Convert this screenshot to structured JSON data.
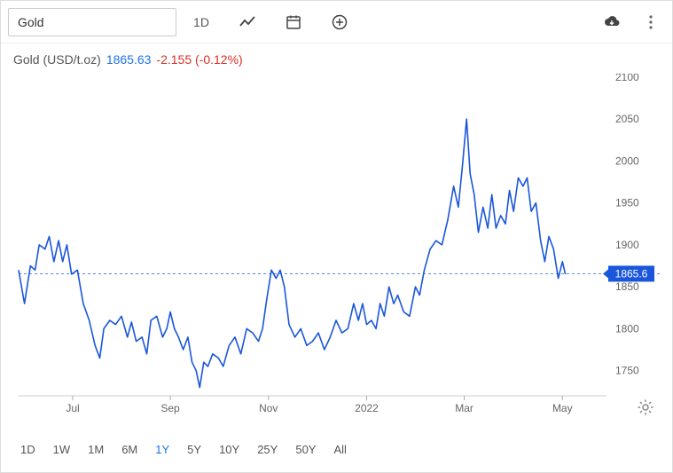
{
  "toolbar": {
    "search_value": "Gold",
    "timeframe_label": "1D"
  },
  "header": {
    "name": "Gold (USD/t.oz)",
    "price": "1865.63",
    "change": "-2.155 (-0.12%)"
  },
  "chart": {
    "type": "line",
    "line_color": "#1a56db",
    "line_width": 1.6,
    "background_color": "#ffffff",
    "border_color": "#e0e0e0",
    "label_fontsize": 12,
    "label_color": "#666666",
    "ylim": [
      1720,
      2100
    ],
    "yticks": [
      1750,
      1800,
      1850,
      1900,
      1950,
      2000,
      2050,
      2100
    ],
    "xticks": [
      "Jul",
      "Sep",
      "Nov",
      "2022",
      "Mar",
      "May"
    ],
    "xtick_positions": [
      0.092,
      0.258,
      0.425,
      0.592,
      0.758,
      0.925
    ],
    "current_badge": {
      "value": "1865.6",
      "bg": "#1a56db",
      "fg": "#ffffff"
    },
    "reference_line": {
      "y": 1865.6,
      "color": "#1a56db",
      "dash": "3,3"
    },
    "series": [
      {
        "x": 0.0,
        "y": 1870
      },
      {
        "x": 0.01,
        "y": 1830
      },
      {
        "x": 0.02,
        "y": 1875
      },
      {
        "x": 0.028,
        "y": 1870
      },
      {
        "x": 0.035,
        "y": 1900
      },
      {
        "x": 0.045,
        "y": 1895
      },
      {
        "x": 0.052,
        "y": 1910
      },
      {
        "x": 0.06,
        "y": 1880
      },
      {
        "x": 0.068,
        "y": 1905
      },
      {
        "x": 0.075,
        "y": 1880
      },
      {
        "x": 0.082,
        "y": 1900
      },
      {
        "x": 0.09,
        "y": 1865
      },
      {
        "x": 0.1,
        "y": 1870
      },
      {
        "x": 0.11,
        "y": 1830
      },
      {
        "x": 0.12,
        "y": 1810
      },
      {
        "x": 0.13,
        "y": 1780
      },
      {
        "x": 0.138,
        "y": 1765
      },
      {
        "x": 0.145,
        "y": 1800
      },
      {
        "x": 0.155,
        "y": 1810
      },
      {
        "x": 0.165,
        "y": 1805
      },
      {
        "x": 0.175,
        "y": 1815
      },
      {
        "x": 0.185,
        "y": 1790
      },
      {
        "x": 0.192,
        "y": 1808
      },
      {
        "x": 0.2,
        "y": 1785
      },
      {
        "x": 0.21,
        "y": 1790
      },
      {
        "x": 0.218,
        "y": 1770
      },
      {
        "x": 0.225,
        "y": 1810
      },
      {
        "x": 0.235,
        "y": 1815
      },
      {
        "x": 0.245,
        "y": 1790
      },
      {
        "x": 0.252,
        "y": 1800
      },
      {
        "x": 0.258,
        "y": 1820
      },
      {
        "x": 0.265,
        "y": 1800
      },
      {
        "x": 0.272,
        "y": 1790
      },
      {
        "x": 0.28,
        "y": 1775
      },
      {
        "x": 0.288,
        "y": 1790
      },
      {
        "x": 0.295,
        "y": 1760
      },
      {
        "x": 0.302,
        "y": 1750
      },
      {
        "x": 0.308,
        "y": 1730
      },
      {
        "x": 0.315,
        "y": 1760
      },
      {
        "x": 0.322,
        "y": 1755
      },
      {
        "x": 0.33,
        "y": 1770
      },
      {
        "x": 0.34,
        "y": 1765
      },
      {
        "x": 0.348,
        "y": 1755
      },
      {
        "x": 0.358,
        "y": 1780
      },
      {
        "x": 0.368,
        "y": 1790
      },
      {
        "x": 0.378,
        "y": 1770
      },
      {
        "x": 0.388,
        "y": 1800
      },
      {
        "x": 0.398,
        "y": 1795
      },
      {
        "x": 0.408,
        "y": 1785
      },
      {
        "x": 0.415,
        "y": 1800
      },
      {
        "x": 0.422,
        "y": 1835
      },
      {
        "x": 0.43,
        "y": 1870
      },
      {
        "x": 0.438,
        "y": 1860
      },
      {
        "x": 0.445,
        "y": 1870
      },
      {
        "x": 0.452,
        "y": 1850
      },
      {
        "x": 0.46,
        "y": 1805
      },
      {
        "x": 0.47,
        "y": 1790
      },
      {
        "x": 0.48,
        "y": 1800
      },
      {
        "x": 0.49,
        "y": 1780
      },
      {
        "x": 0.5,
        "y": 1785
      },
      {
        "x": 0.51,
        "y": 1795
      },
      {
        "x": 0.52,
        "y": 1775
      },
      {
        "x": 0.53,
        "y": 1790
      },
      {
        "x": 0.54,
        "y": 1810
      },
      {
        "x": 0.55,
        "y": 1795
      },
      {
        "x": 0.56,
        "y": 1800
      },
      {
        "x": 0.57,
        "y": 1830
      },
      {
        "x": 0.578,
        "y": 1810
      },
      {
        "x": 0.585,
        "y": 1830
      },
      {
        "x": 0.592,
        "y": 1805
      },
      {
        "x": 0.6,
        "y": 1810
      },
      {
        "x": 0.608,
        "y": 1800
      },
      {
        "x": 0.615,
        "y": 1830
      },
      {
        "x": 0.622,
        "y": 1815
      },
      {
        "x": 0.63,
        "y": 1850
      },
      {
        "x": 0.638,
        "y": 1830
      },
      {
        "x": 0.645,
        "y": 1840
      },
      {
        "x": 0.655,
        "y": 1820
      },
      {
        "x": 0.665,
        "y": 1815
      },
      {
        "x": 0.675,
        "y": 1850
      },
      {
        "x": 0.682,
        "y": 1840
      },
      {
        "x": 0.69,
        "y": 1870
      },
      {
        "x": 0.7,
        "y": 1895
      },
      {
        "x": 0.71,
        "y": 1905
      },
      {
        "x": 0.72,
        "y": 1900
      },
      {
        "x": 0.73,
        "y": 1930
      },
      {
        "x": 0.74,
        "y": 1970
      },
      {
        "x": 0.748,
        "y": 1945
      },
      {
        "x": 0.755,
        "y": 1995
      },
      {
        "x": 0.762,
        "y": 2050
      },
      {
        "x": 0.768,
        "y": 1985
      },
      {
        "x": 0.775,
        "y": 1960
      },
      {
        "x": 0.782,
        "y": 1915
      },
      {
        "x": 0.79,
        "y": 1945
      },
      {
        "x": 0.798,
        "y": 1920
      },
      {
        "x": 0.805,
        "y": 1960
      },
      {
        "x": 0.812,
        "y": 1920
      },
      {
        "x": 0.82,
        "y": 1935
      },
      {
        "x": 0.828,
        "y": 1925
      },
      {
        "x": 0.835,
        "y": 1965
      },
      {
        "x": 0.842,
        "y": 1940
      },
      {
        "x": 0.85,
        "y": 1980
      },
      {
        "x": 0.858,
        "y": 1970
      },
      {
        "x": 0.865,
        "y": 1980
      },
      {
        "x": 0.872,
        "y": 1940
      },
      {
        "x": 0.88,
        "y": 1950
      },
      {
        "x": 0.888,
        "y": 1905
      },
      {
        "x": 0.895,
        "y": 1880
      },
      {
        "x": 0.902,
        "y": 1910
      },
      {
        "x": 0.91,
        "y": 1895
      },
      {
        "x": 0.918,
        "y": 1860
      },
      {
        "x": 0.925,
        "y": 1880
      },
      {
        "x": 0.93,
        "y": 1865
      }
    ]
  },
  "ranges": {
    "options": [
      "1D",
      "1W",
      "1M",
      "6M",
      "1Y",
      "5Y",
      "10Y",
      "25Y",
      "50Y",
      "All"
    ],
    "active": "1Y"
  }
}
